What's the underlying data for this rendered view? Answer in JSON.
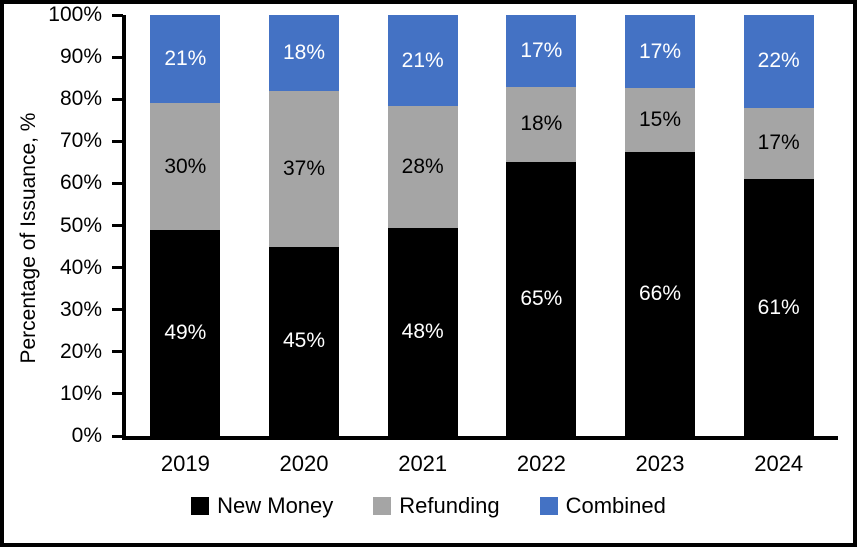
{
  "chart_data": {
    "type": "bar",
    "stacked": true,
    "title": "",
    "xlabel": "",
    "ylabel": "Percentage of Issuance, %",
    "categories": [
      "2019",
      "2020",
      "2021",
      "2022",
      "2023",
      "2024"
    ],
    "series": [
      {
        "name": "New Money",
        "color": "#000000",
        "label_color": "#ffffff",
        "values": [
          49,
          45,
          48,
          65,
          66,
          61
        ]
      },
      {
        "name": "Refunding",
        "color": "#A5A5A5",
        "label_color": "#000000",
        "values": [
          30,
          37,
          28,
          18,
          15,
          17
        ]
      },
      {
        "name": "Combined",
        "color": "#4472C4",
        "label_color": "#ffffff",
        "values": [
          21,
          18,
          21,
          17,
          17,
          22
        ]
      }
    ],
    "value_suffix": "%",
    "yticks": [
      "0%",
      "10%",
      "20%",
      "30%",
      "40%",
      "50%",
      "60%",
      "70%",
      "80%",
      "90%",
      "100%"
    ],
    "ylim": [
      0,
      100
    ],
    "grid": false,
    "legend_position": "bottom"
  }
}
